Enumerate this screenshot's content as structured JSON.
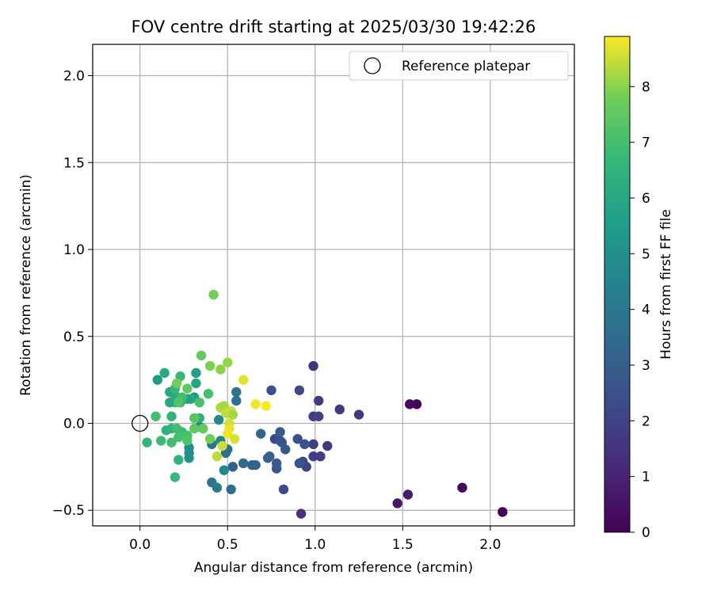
{
  "chart_data": {
    "type": "scatter",
    "title": "FOV centre drift starting at 2025/03/30 19:42:26",
    "xlabel": "Angular distance from reference (arcmin)",
    "ylabel": "Rotation from reference (arcmin)",
    "xlim": [
      -0.27,
      2.48
    ],
    "ylim": [
      -0.59,
      2.18
    ],
    "xticks": [
      0.0,
      0.5,
      1.0,
      1.5,
      2.0
    ],
    "yticks": [
      -0.5,
      0.0,
      0.5,
      1.0,
      1.5,
      2.0
    ],
    "grid": true,
    "legend": {
      "placement": "top-right",
      "entries": [
        "Reference platepar"
      ]
    },
    "reference_point": {
      "name": "Reference platepar",
      "x": 0.0,
      "y": 0.0
    },
    "colorbar": {
      "label": "Hours from first FF file",
      "range": [
        0,
        8.9
      ],
      "ticks": [
        0,
        1,
        2,
        3,
        4,
        5,
        6,
        7,
        8
      ],
      "colormap": "viridis"
    },
    "points": [
      {
        "x": 2.07,
        "y": -0.51,
        "c": 0.0
      },
      {
        "x": 1.58,
        "y": 0.11,
        "c": 0.1
      },
      {
        "x": 1.54,
        "y": 0.11,
        "c": 0.3
      },
      {
        "x": 1.84,
        "y": -0.37,
        "c": 0.2
      },
      {
        "x": 1.47,
        "y": -0.46,
        "c": 0.6
      },
      {
        "x": 1.53,
        "y": -0.41,
        "c": 0.8
      },
      {
        "x": 0.99,
        "y": 0.33,
        "c": 1.5
      },
      {
        "x": 0.92,
        "y": -0.52,
        "c": 1.4
      },
      {
        "x": 1.25,
        "y": 0.05,
        "c": 1.7
      },
      {
        "x": 1.14,
        "y": 0.08,
        "c": 1.6
      },
      {
        "x": 1.02,
        "y": 0.13,
        "c": 1.8
      },
      {
        "x": 1.07,
        "y": -0.13,
        "c": 1.7
      },
      {
        "x": 1.03,
        "y": -0.19,
        "c": 1.8
      },
      {
        "x": 0.99,
        "y": -0.19,
        "c": 1.9
      },
      {
        "x": 0.99,
        "y": -0.12,
        "c": 1.9
      },
      {
        "x": 0.99,
        "y": 0.04,
        "c": 1.8
      },
      {
        "x": 1.02,
        "y": 0.04,
        "c": 2.0
      },
      {
        "x": 0.91,
        "y": 0.19,
        "c": 2.2
      },
      {
        "x": 0.95,
        "y": -0.25,
        "c": 2.1
      },
      {
        "x": 0.93,
        "y": -0.22,
        "c": 2.3
      },
      {
        "x": 0.9,
        "y": -0.09,
        "c": 2.4
      },
      {
        "x": 0.94,
        "y": -0.12,
        "c": 2.5
      },
      {
        "x": 0.91,
        "y": -0.23,
        "c": 2.6
      },
      {
        "x": 0.82,
        "y": -0.38,
        "c": 2.3
      },
      {
        "x": 0.75,
        "y": 0.19,
        "c": 2.5
      },
      {
        "x": 0.77,
        "y": -0.09,
        "c": 2.2
      },
      {
        "x": 0.8,
        "y": -0.1,
        "c": 2.3
      },
      {
        "x": 0.81,
        "y": -0.11,
        "c": 2.6
      },
      {
        "x": 0.83,
        "y": -0.15,
        "c": 2.8
      },
      {
        "x": 0.8,
        "y": -0.05,
        "c": 2.9
      },
      {
        "x": 0.78,
        "y": -0.26,
        "c": 2.7
      },
      {
        "x": 0.78,
        "y": -0.23,
        "c": 2.8
      },
      {
        "x": 0.74,
        "y": -0.19,
        "c": 3.0
      },
      {
        "x": 0.73,
        "y": -0.2,
        "c": 3.2
      },
      {
        "x": 0.69,
        "y": -0.06,
        "c": 3.3
      },
      {
        "x": 0.66,
        "y": -0.24,
        "c": 3.0
      },
      {
        "x": 0.64,
        "y": -0.24,
        "c": 3.1
      },
      {
        "x": 0.59,
        "y": -0.23,
        "c": 3.4
      },
      {
        "x": 0.53,
        "y": -0.25,
        "c": 3.1
      },
      {
        "x": 0.52,
        "y": -0.38,
        "c": 3.6
      },
      {
        "x": 0.55,
        "y": 0.18,
        "c": 3.8
      },
      {
        "x": 0.55,
        "y": 0.13,
        "c": 3.6
      },
      {
        "x": 0.5,
        "y": -0.15,
        "c": 3.5
      },
      {
        "x": 0.49,
        "y": -0.17,
        "c": 3.7
      },
      {
        "x": 0.41,
        "y": -0.12,
        "c": 3.8
      },
      {
        "x": 0.41,
        "y": -0.34,
        "c": 3.9
      },
      {
        "x": 0.44,
        "y": -0.37,
        "c": 4.2
      },
      {
        "x": 0.46,
        "y": -0.1,
        "c": 4.5
      },
      {
        "x": 0.48,
        "y": -0.27,
        "c": 4.6
      },
      {
        "x": 0.45,
        "y": 0.02,
        "c": 4.8
      },
      {
        "x": 0.34,
        "y": -0.02,
        "c": 4.2
      },
      {
        "x": 0.28,
        "y": -0.14,
        "c": 4.8
      },
      {
        "x": 0.28,
        "y": -0.2,
        "c": 5.2
      },
      {
        "x": 0.28,
        "y": -0.17,
        "c": 5.0
      },
      {
        "x": 0.32,
        "y": 0.29,
        "c": 5.6
      },
      {
        "x": 0.32,
        "y": 0.23,
        "c": 5.8
      },
      {
        "x": 0.31,
        "y": 0.15,
        "c": 5.4
      },
      {
        "x": 0.29,
        "y": 0.14,
        "c": 6.0
      },
      {
        "x": 0.27,
        "y": 0.14,
        "c": 5.7
      },
      {
        "x": 0.24,
        "y": 0.14,
        "c": 6.1
      },
      {
        "x": 0.23,
        "y": 0.12,
        "c": 6.3
      },
      {
        "x": 0.2,
        "y": 0.12,
        "c": 6.5
      },
      {
        "x": 0.17,
        "y": 0.12,
        "c": 5.9
      },
      {
        "x": 0.2,
        "y": 0.16,
        "c": 6.2
      },
      {
        "x": 0.17,
        "y": 0.18,
        "c": 6.0
      },
      {
        "x": 0.2,
        "y": 0.2,
        "c": 6.6
      },
      {
        "x": 0.14,
        "y": 0.29,
        "c": 6.1
      },
      {
        "x": 0.1,
        "y": 0.25,
        "c": 5.5
      },
      {
        "x": 0.23,
        "y": 0.27,
        "c": 6.7
      },
      {
        "x": 0.24,
        "y": 0.15,
        "c": 6.9
      },
      {
        "x": 0.18,
        "y": 0.04,
        "c": 6.5
      },
      {
        "x": 0.15,
        "y": -0.04,
        "c": 6.3
      },
      {
        "x": 0.18,
        "y": -0.03,
        "c": 6.4
      },
      {
        "x": 0.21,
        "y": -0.03,
        "c": 6.9
      },
      {
        "x": 0.24,
        "y": -0.05,
        "c": 6.8
      },
      {
        "x": 0.27,
        "y": -0.07,
        "c": 7.0
      },
      {
        "x": 0.27,
        "y": -0.1,
        "c": 7.2
      },
      {
        "x": 0.22,
        "y": -0.08,
        "c": 7.1
      },
      {
        "x": 0.18,
        "y": -0.11,
        "c": 6.9
      },
      {
        "x": 0.12,
        "y": -0.1,
        "c": 6.8
      },
      {
        "x": 0.09,
        "y": 0.04,
        "c": 7.0
      },
      {
        "x": 0.04,
        "y": -0.11,
        "c": 6.6
      },
      {
        "x": 0.22,
        "y": -0.21,
        "c": 6.4
      },
      {
        "x": 0.2,
        "y": -0.31,
        "c": 6.7
      },
      {
        "x": 0.22,
        "y": 0.12,
        "c": 7.3
      },
      {
        "x": 0.21,
        "y": 0.23,
        "c": 7.8
      },
      {
        "x": 0.27,
        "y": 0.2,
        "c": 7.5
      },
      {
        "x": 0.34,
        "y": 0.03,
        "c": 6.3
      },
      {
        "x": 0.34,
        "y": 0.12,
        "c": 7.1
      },
      {
        "x": 0.39,
        "y": 0.17,
        "c": 7.0
      },
      {
        "x": 0.35,
        "y": 0.39,
        "c": 7.6
      },
      {
        "x": 0.31,
        "y": 0.03,
        "c": 7.4
      },
      {
        "x": 0.31,
        "y": -0.03,
        "c": 7.5
      },
      {
        "x": 0.36,
        "y": -0.03,
        "c": 7.6
      },
      {
        "x": 0.4,
        "y": -0.09,
        "c": 7.8
      },
      {
        "x": 0.4,
        "y": 0.33,
        "c": 7.9
      },
      {
        "x": 0.42,
        "y": 0.74,
        "c": 7.8
      },
      {
        "x": 0.46,
        "y": 0.31,
        "c": 8.0
      },
      {
        "x": 0.5,
        "y": 0.35,
        "c": 8.1
      },
      {
        "x": 0.46,
        "y": 0.09,
        "c": 8.3
      },
      {
        "x": 0.48,
        "y": 0.1,
        "c": 8.2
      },
      {
        "x": 0.49,
        "y": 0.06,
        "c": 8.4
      },
      {
        "x": 0.52,
        "y": 0.07,
        "c": 8.5
      },
      {
        "x": 0.53,
        "y": 0.05,
        "c": 8.2
      },
      {
        "x": 0.51,
        "y": 0.0,
        "c": 8.6
      },
      {
        "x": 0.51,
        "y": -0.03,
        "c": 8.7
      },
      {
        "x": 0.5,
        "y": -0.06,
        "c": 8.8
      },
      {
        "x": 0.54,
        "y": -0.09,
        "c": 8.6
      },
      {
        "x": 0.47,
        "y": -0.13,
        "c": 8.5
      },
      {
        "x": 0.44,
        "y": -0.19,
        "c": 8.4
      },
      {
        "x": 0.59,
        "y": 0.25,
        "c": 8.7
      },
      {
        "x": 0.66,
        "y": 0.11,
        "c": 8.8
      },
      {
        "x": 0.72,
        "y": 0.1,
        "c": 8.9
      }
    ]
  }
}
